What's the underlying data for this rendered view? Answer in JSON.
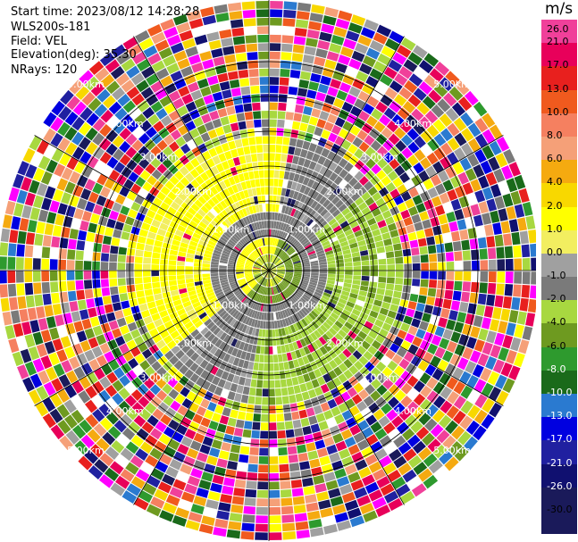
{
  "header": {
    "start_time": "Start time: 2023/08/12 14:28:28",
    "station": "WLS200s-181",
    "field": "Field: VEL",
    "elevation": "Elevation(deg): 35.30",
    "nrays": "NRays: 120"
  },
  "colorbar": {
    "unit": "m/s",
    "levels": [
      {
        "label": "26.0",
        "color": "#f0409a"
      },
      {
        "label": "21.0",
        "color": "#e8005a"
      },
      {
        "label": "17.0",
        "color": "#e8201e"
      },
      {
        "label": "13.0",
        "color": "#f05a1e"
      },
      {
        "label": "10.0",
        "color": "#f58060"
      },
      {
        "label": "8.0",
        "color": "#f5a078"
      },
      {
        "label": "6.0",
        "color": "#f5aa10"
      },
      {
        "label": "4.0",
        "color": "#f8d800"
      },
      {
        "label": "2.0",
        "color": "#ffff00"
      },
      {
        "label": "1.0",
        "color": "#f2ee60"
      },
      {
        "label": "0.0",
        "color": "#a0a0a0"
      },
      {
        "label": "-1.0",
        "color": "#7a7a7a"
      },
      {
        "label": "-2.0",
        "color": "#a8d840"
      },
      {
        "label": "-4.0",
        "color": "#6e9a20"
      },
      {
        "label": "-6.0",
        "color": "#2e9a2e"
      },
      {
        "label": "-8.0",
        "color": "#1a6a1a"
      },
      {
        "label": "-10.0",
        "color": "#2a7ad0"
      },
      {
        "label": "-13.0",
        "color": "#0000e0"
      },
      {
        "label": "-17.0",
        "color": "#2020a0"
      },
      {
        "label": "-21.0",
        "color": "#101070"
      },
      {
        "label": "-26.0",
        "color": "#1a1a5a"
      },
      {
        "label": "-30.0",
        "color": "#ffffff"
      }
    ]
  },
  "range_rings": {
    "labels": [
      "1.00km",
      "2.00km",
      "3.00km",
      "4.00km",
      "5.00km"
    ]
  }
}
